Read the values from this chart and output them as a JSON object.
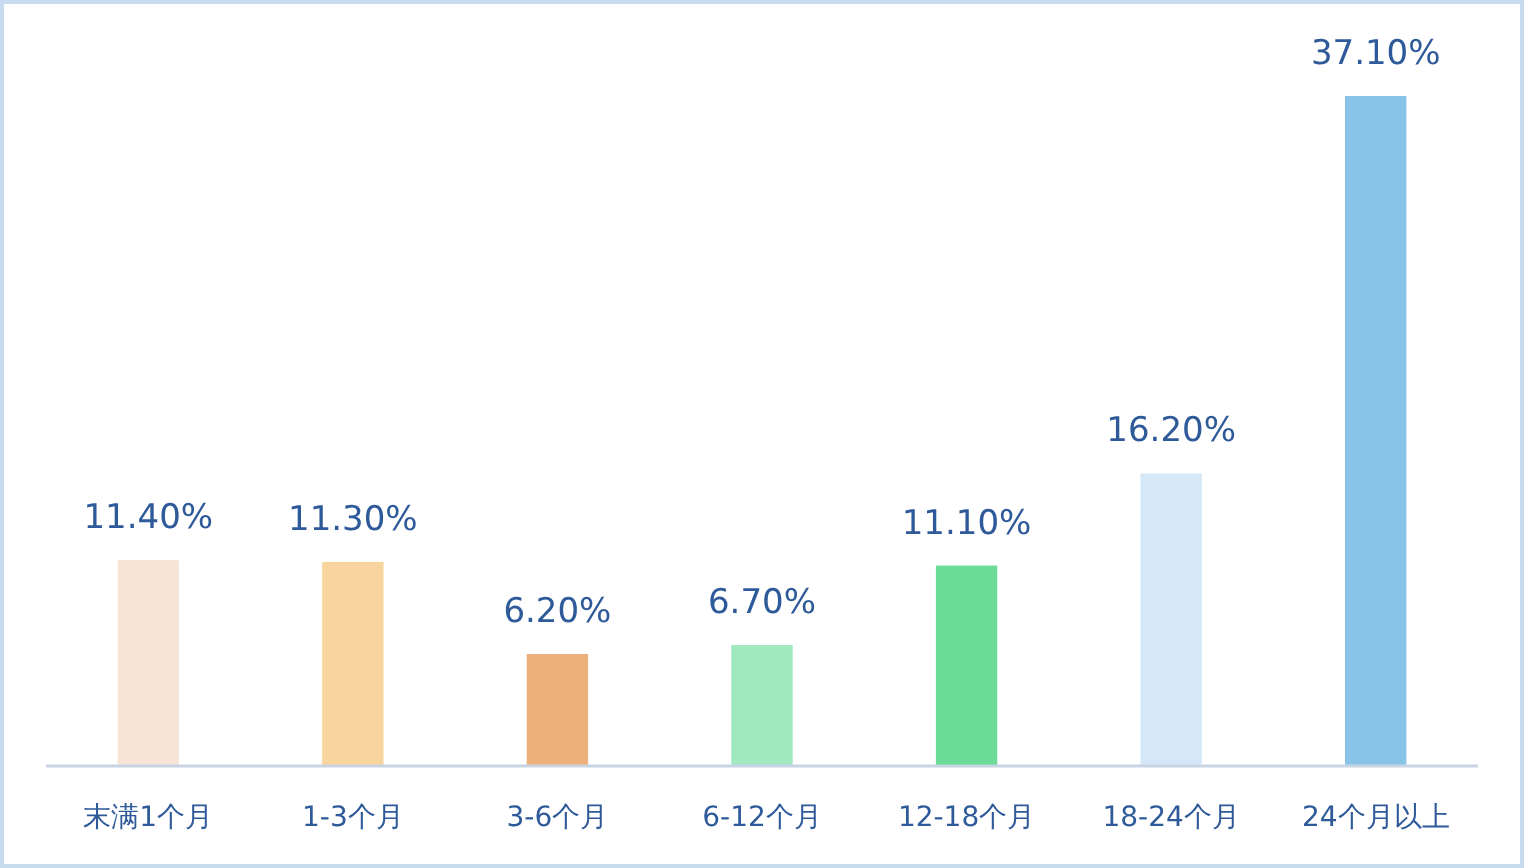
{
  "chart_data": {
    "type": "bar",
    "categories": [
      "末满1个月",
      "1-3个月",
      "3-6个月",
      "6-12个月",
      "12-18个月",
      "18-24个月",
      "24个月以上"
    ],
    "values": [
      11.4,
      11.3,
      6.2,
      6.7,
      11.1,
      16.2,
      37.1
    ],
    "colors": [
      "#f8e4d4",
      "#f8d59e",
      "#eeb07a",
      "#a0e8c0",
      "#6cdc98",
      "#d4e8f8",
      "#88c4e8"
    ],
    "value_labels": [
      "11.40%",
      "11.30%",
      "6.20%",
      "6.70%",
      "11.10%",
      "16.20%",
      "37.10%"
    ],
    "ylim": [
      0,
      37.1
    ]
  }
}
